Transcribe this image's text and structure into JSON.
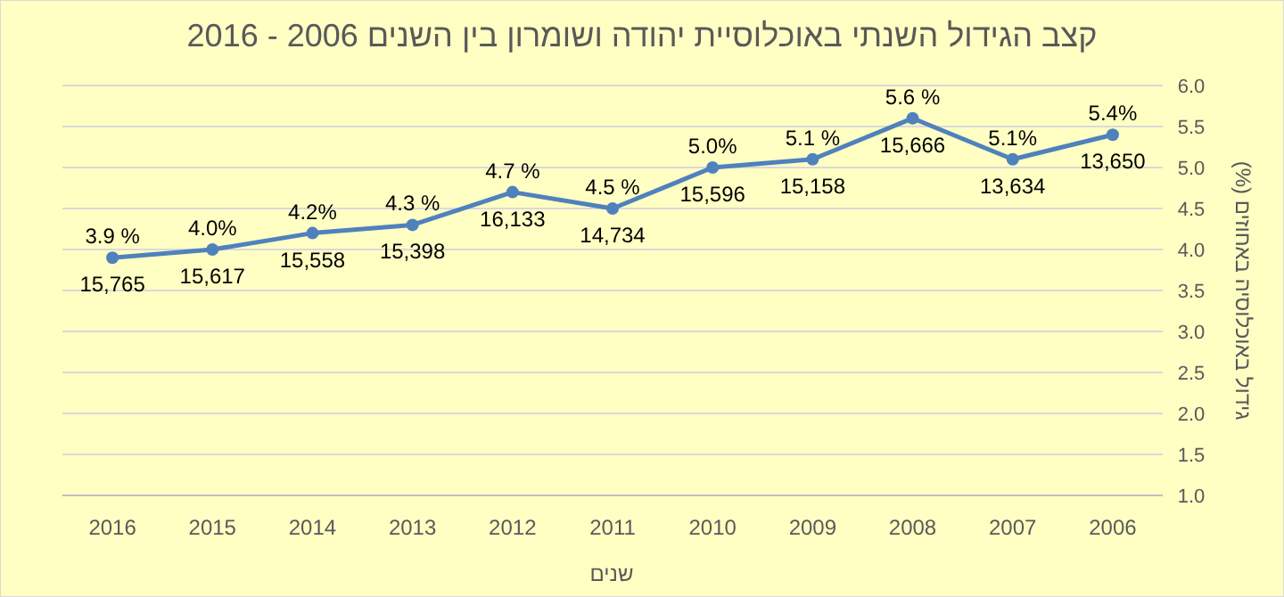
{
  "chart_data": {
    "type": "line",
    "title": "קצב הגידול השנתי באוכלוסיית יהודה ושומרון בין השנים 2006 - 2016",
    "xlabel": "שנים",
    "ylabel": "גידול באוכלוסיה באחוזים (%)",
    "categories": [
      "2016",
      "2015",
      "2014",
      "2013",
      "2012",
      "2011",
      "2010",
      "2009",
      "2008",
      "2007",
      "2006"
    ],
    "series": [
      {
        "color": "#4f81bd",
        "values": [
          3.9,
          4.0,
          4.2,
          4.3,
          4.7,
          4.5,
          5.0,
          5.1,
          5.6,
          5.1,
          5.4
        ],
        "value_labels": [
          "3.9 %",
          "4.0%",
          "4.2%",
          "4.3 %",
          "4.7 %",
          "4.5 %",
          "5.0%",
          "5.1 %",
          "5.6 %",
          "5.1%",
          "5.4%"
        ]
      }
    ],
    "annotations": [
      {
        "text": "15,765",
        "x": "2016",
        "y": 3.9
      },
      {
        "text": "15,617",
        "x": "2015",
        "y": 4.0
      },
      {
        "text": "15,558",
        "x": "2014",
        "y": 4.2
      },
      {
        "text": "15,398",
        "x": "2013",
        "y": 4.3
      },
      {
        "text": "16,133",
        "x": "2012",
        "y": 4.7
      },
      {
        "text": "14,734",
        "x": "2011",
        "y": 4.5
      },
      {
        "text": "15,596",
        "x": "2010",
        "y": 5.0
      },
      {
        "text": "15,158",
        "x": "2009",
        "y": 5.1
      },
      {
        "text": "15,666",
        "x": "2008",
        "y": 5.6
      },
      {
        "text": "13,634",
        "x": "2007",
        "y": 5.1
      },
      {
        "text": "13,650",
        "x": "2006",
        "y": 5.4
      }
    ],
    "ylim": [
      1.0,
      6.0
    ],
    "yticks": [
      {
        "value": 1.0,
        "label": "1.0"
      },
      {
        "value": 1.5,
        "label": "1.5"
      },
      {
        "value": 2.0,
        "label": "2.0"
      },
      {
        "value": 2.5,
        "label": "2.5"
      },
      {
        "value": 3.0,
        "label": "3.0"
      },
      {
        "value": 3.5,
        "label": "3.5"
      },
      {
        "value": 4.0,
        "label": "4.0"
      },
      {
        "value": 4.5,
        "label": "4.5"
      },
      {
        "value": 5.0,
        "label": "5.0"
      },
      {
        "value": 5.5,
        "label": "5.5"
      },
      {
        "value": 6.0,
        "label": "6.0"
      }
    ],
    "grid": "y",
    "marker": "circle",
    "line_style": "solid"
  }
}
